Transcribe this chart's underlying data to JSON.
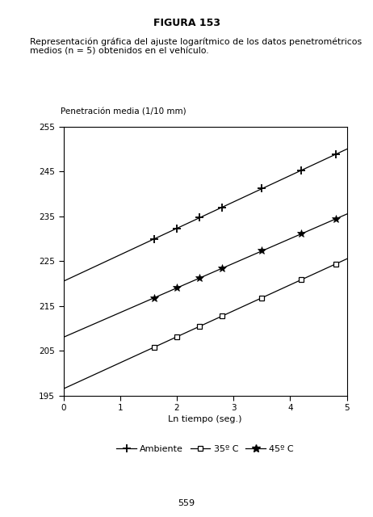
{
  "figure_title": "FIGURA 153",
  "description_line1": "Representación gráfica del ajuste logarítmico de los datos penetrométricos",
  "description_line2": "medios (n = 5) obtenidos en el vehículo.",
  "page_number": "559",
  "ylabel_title": "Penetración media (1/10 mm)",
  "xlabel": "Ln tiempo (seg.)",
  "xlim": [
    0,
    5
  ],
  "ylim": [
    195,
    255
  ],
  "yticks": [
    195,
    205,
    215,
    225,
    235,
    245,
    255
  ],
  "xticks": [
    0,
    1,
    2,
    3,
    4,
    5
  ],
  "series": [
    {
      "label": "Ambiente",
      "marker": "+",
      "intercept": 220.5,
      "slope": 5.9,
      "x_data": [
        1.6,
        2.0,
        2.4,
        2.8,
        3.5,
        4.2,
        4.8
      ],
      "y_data": [
        229.9,
        232.3,
        234.7,
        237.0,
        241.2,
        245.3,
        248.8
      ]
    },
    {
      "label": "35º C",
      "marker": "s",
      "intercept": 196.5,
      "slope": 5.8,
      "x_data": [
        1.6,
        2.0,
        2.4,
        2.8,
        3.5,
        4.2,
        4.8
      ],
      "y_data": [
        205.8,
        208.1,
        210.4,
        212.7,
        216.8,
        220.9,
        224.4
      ]
    },
    {
      "label": "45º C",
      "marker": "*",
      "intercept": 208.0,
      "slope": 5.5,
      "x_data": [
        1.6,
        2.0,
        2.4,
        2.8,
        3.5,
        4.2,
        4.8
      ],
      "y_data": [
        216.8,
        219.0,
        221.2,
        223.4,
        227.3,
        231.1,
        234.4
      ]
    }
  ],
  "background_color": "#ffffff",
  "text_color": "#000000",
  "linewidth": 0.9,
  "marker_size_plus": 7,
  "marker_size_square": 4,
  "marker_size_star": 7
}
